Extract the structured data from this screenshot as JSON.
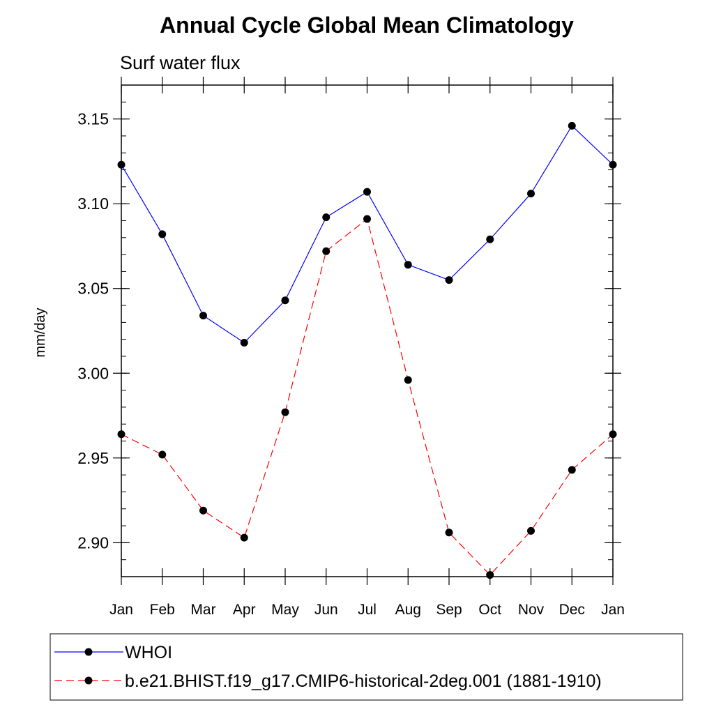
{
  "chart_data": {
    "type": "line",
    "title": "Annual Cycle Global Mean Climatology",
    "subtitle": "Surf water flux",
    "xlabel": "",
    "ylabel": "mm/day",
    "categories": [
      "Jan",
      "Feb",
      "Mar",
      "Apr",
      "May",
      "Jun",
      "Jul",
      "Aug",
      "Sep",
      "Oct",
      "Nov",
      "Dec",
      "Jan"
    ],
    "ylim": [
      2.88,
      3.17
    ],
    "yticks": [
      2.9,
      2.95,
      3.0,
      3.05,
      3.1,
      3.15
    ],
    "ytick_labels": [
      "2.90",
      "2.95",
      "3.00",
      "3.05",
      "3.10",
      "3.15"
    ],
    "yminor_step": 0.01,
    "grid": false,
    "legend_position": "bottom",
    "series": [
      {
        "name": "WHOI",
        "color": "#0000ff",
        "line_style": "solid",
        "marker": "circle",
        "values": [
          3.123,
          3.082,
          3.034,
          3.018,
          3.043,
          3.092,
          3.107,
          3.064,
          3.055,
          3.079,
          3.106,
          3.146,
          3.123
        ]
      },
      {
        "name": "b.e21.BHIST.f19_g17.CMIP6-historical-2deg.001 (1881-1910)",
        "color": "#ff0000",
        "line_style": "dashed",
        "marker": "circle",
        "values": [
          2.964,
          2.952,
          2.919,
          2.903,
          2.977,
          3.072,
          3.091,
          2.996,
          2.906,
          2.881,
          2.907,
          2.943,
          2.964
        ]
      }
    ]
  }
}
